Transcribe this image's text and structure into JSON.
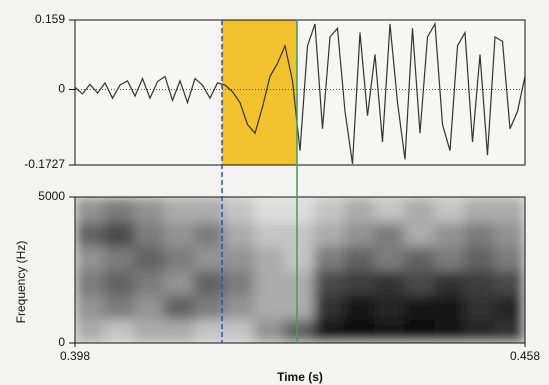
{
  "chart_data": [
    {
      "type": "line",
      "x": [
        0.398,
        0.399,
        0.4,
        0.401,
        0.402,
        0.403,
        0.404,
        0.405,
        0.406,
        0.407,
        0.408,
        0.409,
        0.41,
        0.411,
        0.412,
        0.413,
        0.414,
        0.415,
        0.416,
        0.417,
        0.418,
        0.419,
        0.42,
        0.421,
        0.422,
        0.423,
        0.424,
        0.425,
        0.426,
        0.427,
        0.428,
        0.429,
        0.43,
        0.431,
        0.432,
        0.433,
        0.434,
        0.435,
        0.436,
        0.437,
        0.438,
        0.439,
        0.44,
        0.441,
        0.442,
        0.443,
        0.444,
        0.445,
        0.446,
        0.447,
        0.448,
        0.449,
        0.45,
        0.451,
        0.452,
        0.453,
        0.454,
        0.455,
        0.456,
        0.457,
        0.458
      ],
      "values": [
        0.005,
        -0.01,
        0.012,
        -0.008,
        0.015,
        -0.02,
        0.01,
        0.02,
        -0.015,
        0.025,
        -0.02,
        0.018,
        0.03,
        -0.025,
        0.02,
        -0.03,
        0.025,
        0.01,
        -0.02,
        0.015,
        0.01,
        -0.005,
        -0.03,
        -0.08,
        -0.1,
        -0.04,
        0.03,
        0.06,
        0.1,
        0.02,
        -0.14,
        0.1,
        0.15,
        -0.09,
        0.12,
        0.14,
        -0.05,
        -0.17,
        0.13,
        -0.06,
        0.08,
        -0.12,
        0.15,
        -0.03,
        -0.16,
        0.14,
        -0.1,
        0.12,
        0.15,
        -0.08,
        -0.14,
        0.1,
        0.13,
        -0.12,
        0.08,
        -0.15,
        0.12,
        0.11,
        -0.09,
        -0.05,
        0.03
      ],
      "color": "#333333",
      "xlim": [
        0.398,
        0.458
      ],
      "ylim": [
        -0.1727,
        0.159
      ],
      "yticks": [
        -0.1727,
        0,
        0.159
      ],
      "selection": [
        0.4176,
        0.4276
      ],
      "selection_color": "#f2c12e",
      "cursor_colors": [
        "#2d4fb0",
        "#3f9e5c"
      ]
    },
    {
      "type": "heatmap",
      "xlabel": "Time (s)",
      "ylabel": "Frequency (Hz)",
      "xlim": [
        0.398,
        0.458
      ],
      "xticks": [
        0.398,
        0.458
      ],
      "ylim": [
        0,
        5000
      ],
      "yticks": [
        0,
        5000
      ],
      "z": [
        [
          0.3,
          0.2,
          0.3,
          0.3,
          0.2,
          0.2,
          0.4,
          0.6,
          0.9,
          0.95,
          0.9,
          0.95,
          0.9,
          0.85,
          0.8
        ],
        [
          0.4,
          0.5,
          0.4,
          0.6,
          0.5,
          0.4,
          0.3,
          0.3,
          0.8,
          0.9,
          0.85,
          0.9,
          0.9,
          0.8,
          0.85
        ],
        [
          0.5,
          0.6,
          0.5,
          0.4,
          0.6,
          0.5,
          0.3,
          0.3,
          0.7,
          0.75,
          0.8,
          0.7,
          0.8,
          0.75,
          0.7
        ],
        [
          0.4,
          0.5,
          0.6,
          0.5,
          0.4,
          0.4,
          0.3,
          0.2,
          0.5,
          0.6,
          0.5,
          0.6,
          0.5,
          0.6,
          0.5
        ],
        [
          0.6,
          0.7,
          0.5,
          0.4,
          0.5,
          0.3,
          0.2,
          0.2,
          0.3,
          0.4,
          0.5,
          0.3,
          0.4,
          0.5,
          0.4
        ],
        [
          0.4,
          0.5,
          0.4,
          0.3,
          0.3,
          0.2,
          0.1,
          0.1,
          0.2,
          0.3,
          0.2,
          0.3,
          0.2,
          0.3,
          0.3
        ]
      ]
    }
  ]
}
